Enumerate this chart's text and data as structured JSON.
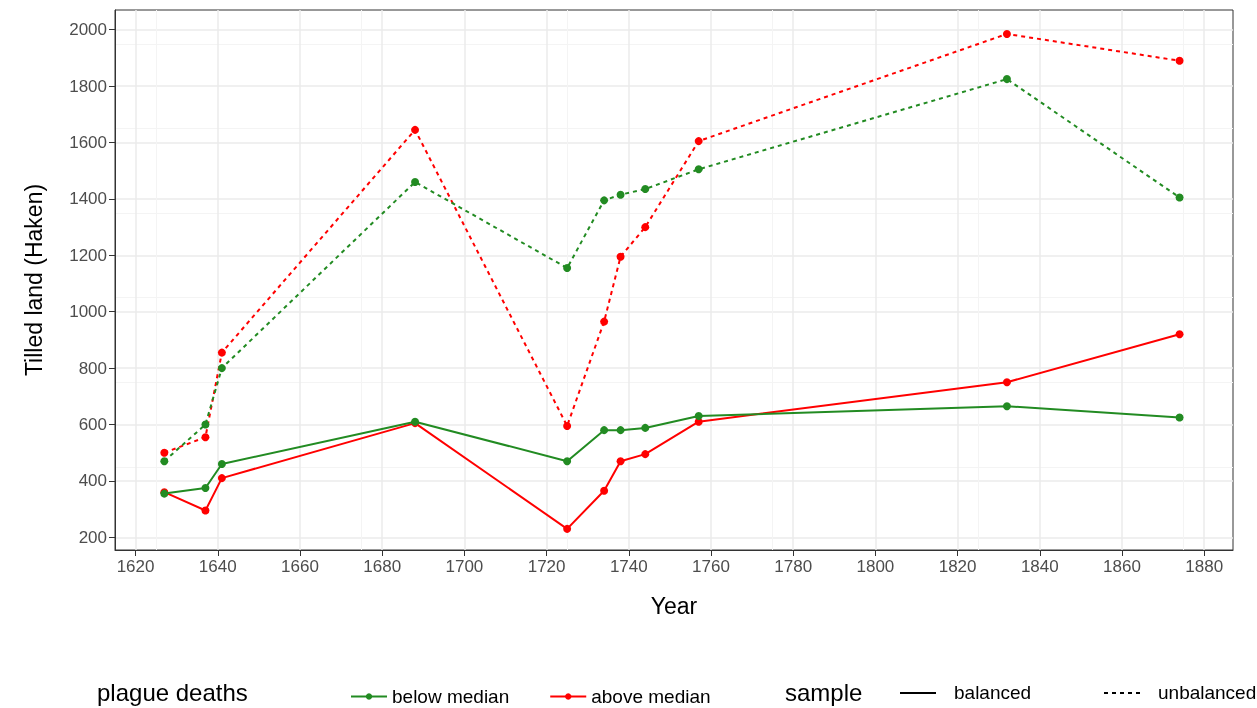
{
  "chart_data": {
    "type": "line",
    "xlabel": "Year",
    "ylabel": "Tilled land (Haken)",
    "legend_title": "plague deaths",
    "x": [
      1627,
      1637,
      1641,
      1688,
      1725,
      1734,
      1738,
      1744,
      1757,
      1832,
      1874
    ],
    "series": [
      {
        "name": "below median",
        "color": "#228b22",
        "line_style": "solid",
        "values": [
          355,
          375,
          460,
          610,
          470,
          580,
          580,
          588,
          630,
          665,
          625
        ]
      },
      {
        "name": "above median",
        "color": "#ff0000",
        "line_style": "solid",
        "values": [
          360,
          295,
          410,
          605,
          230,
          365,
          470,
          495,
          610,
          750,
          920
        ]
      },
      {
        "color": "#228b22",
        "line_style": "dashed",
        "values": [
          470,
          600,
          800,
          1460,
          1155,
          1395,
          1415,
          1435,
          1505,
          1825,
          1405
        ]
      },
      {
        "color": "#ff0000",
        "line_style": "dashed",
        "values": [
          500,
          555,
          855,
          1645,
          595,
          965,
          1195,
          1300,
          1605,
          1985,
          1890
        ]
      }
    ],
    "annotations": [
      "sample",
      "balanced",
      "unbalanced"
    ],
    "xlim": [
      1615,
      1887
    ],
    "xticks": [
      1620,
      1640,
      1660,
      1680,
      1700,
      1720,
      1740,
      1760,
      1780,
      1800,
      1820,
      1840,
      1860,
      1880
    ],
    "ylim": [
      155,
      2070
    ],
    "yticks": [
      200,
      400,
      600,
      800,
      1000,
      1200,
      1400,
      1600,
      1800,
      2000
    ],
    "grid": true,
    "legend": "bottom",
    "marker": "circle"
  }
}
